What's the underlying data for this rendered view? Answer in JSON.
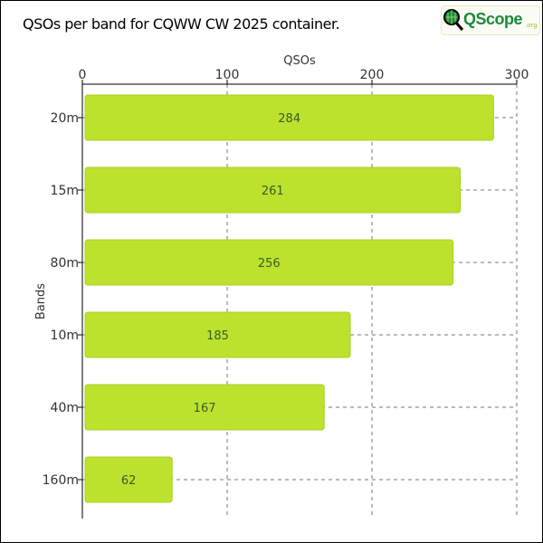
{
  "title": "QSOs per band for CQWW CW 2025 container.",
  "logo": {
    "text": "QScope",
    "suffix": ".org"
  },
  "chart_data": {
    "type": "bar",
    "orientation": "horizontal",
    "title": "QSOs per band for CQWW CW 2025 container.",
    "xlabel": "QSOs",
    "ylabel": "Bands",
    "xlim": [
      0,
      300
    ],
    "xticks": [
      0,
      100,
      200,
      300
    ],
    "grid": true,
    "categories": [
      "20m",
      "15m",
      "80m",
      "10m",
      "40m",
      "160m"
    ],
    "values": [
      284,
      261,
      256,
      185,
      167,
      62
    ],
    "bar_color": "#bce22e",
    "bar_edge": "#a8d020"
  }
}
